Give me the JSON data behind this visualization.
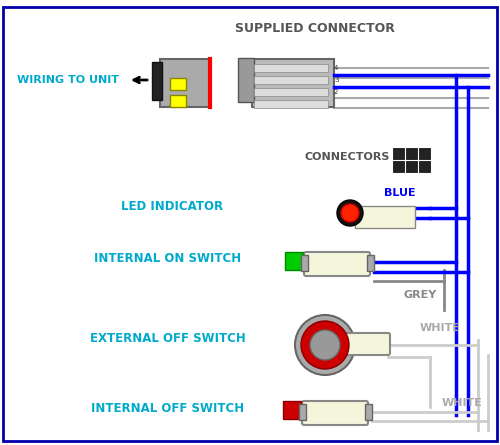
{
  "bg_color": "#ffffff",
  "border_color": "#0000AA",
  "text_color_cyan": "#00AACC",
  "text_color_gray": "#555555",
  "supplied_connector_label": "SUPPLIED CONNECTOR",
  "wiring_label": "WIRING TO UNIT",
  "connectors_label": "CONNECTORS",
  "blue_label": "BLUE",
  "grey_label": "GREY",
  "white_label1": "WHITE",
  "white_label2": "WHITE",
  "led_label": "LED INDICATOR",
  "internal_on_label": "INTERNAL ON SWITCH",
  "external_off_label": "EXTERNAL OFF SWITCH",
  "internal_off_label": "INTERNAL OFF SWITCH",
  "wire_blue": "#0000FF",
  "wire_grey": "#888888",
  "wire_white": "#CCCCCC",
  "wire_black": "#111111",
  "connector_gray": "#AAAAAA",
  "connector_dark": "#555555",
  "led_red": "#FF2200",
  "switch_green": "#00CC00",
  "switch_red": "#CC0000",
  "switch_cream": "#F5F5DC",
  "numbers": [
    "4",
    "3",
    "2"
  ]
}
